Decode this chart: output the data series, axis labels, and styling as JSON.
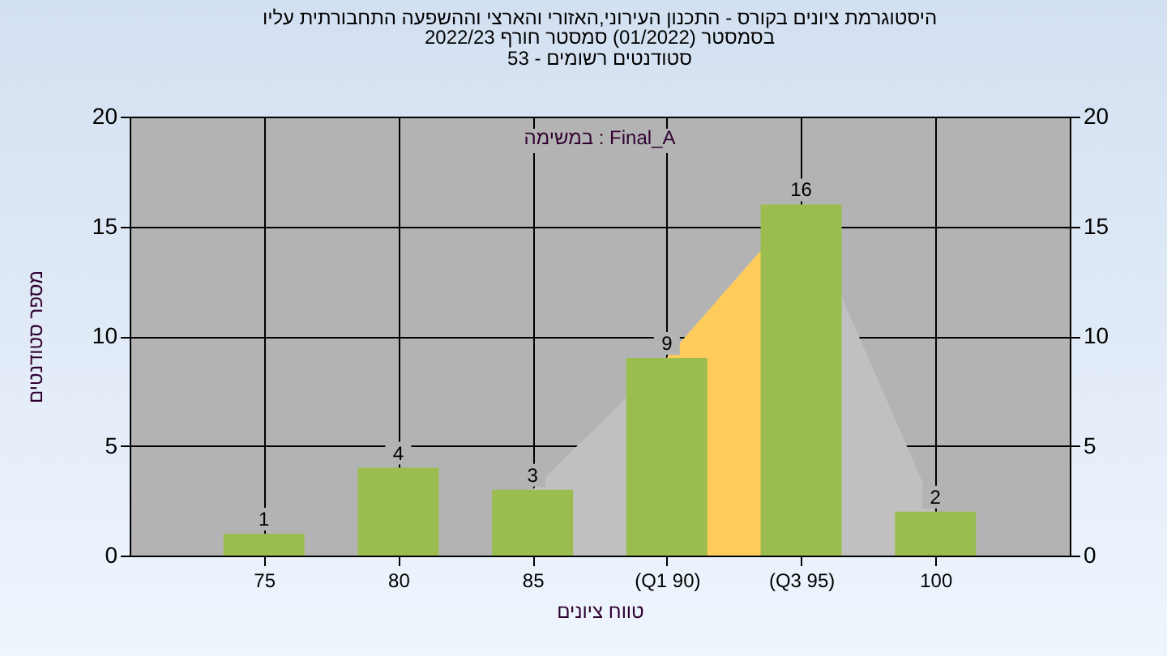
{
  "chart_data": {
    "type": "bar",
    "title": "היסטוגרמת ציונים בקורס - התכנון העירוני,האזורי והארצי וההשפעה התחבורתית עליו",
    "subtitle": "בסמסטר  (01/2022)  סמסטר חורף 2022/23\nסטודנטים רשומים - 53",
    "xlabel": "טווח ציונים",
    "ylabel": "מספר סטודנטים",
    "annotations": [
      "במשימה : Final_A"
    ],
    "categories": [
      "75",
      "80",
      "85",
      "(Q1 90)",
      "(Q3 95)",
      "100"
    ],
    "series": [
      {
        "type": "area",
        "color": "#c0c0c0",
        "values": [
          null,
          null,
          3,
          9,
          16,
          2
        ]
      },
      {
        "type": "area",
        "color": "#ffcc5c",
        "values": [
          null,
          null,
          null,
          9,
          16,
          null
        ]
      },
      {
        "color": "#9bbd4f",
        "values": [
          1,
          4,
          3,
          9,
          16,
          2
        ],
        "value_labels": [
          "1",
          "4",
          "3",
          "9",
          "16",
          "2"
        ]
      }
    ],
    "ylim": [
      0,
      20
    ],
    "yticks": [
      0,
      5,
      10,
      15,
      20
    ],
    "y2lim": [
      0,
      20
    ],
    "y2ticks": [
      0,
      5,
      10,
      15,
      20
    ],
    "grid": true,
    "legend": false
  }
}
